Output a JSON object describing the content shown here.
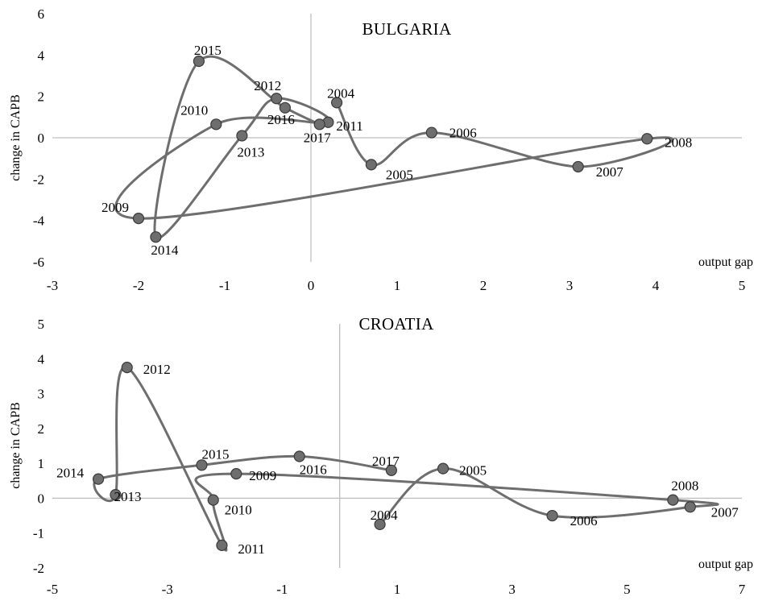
{
  "colors": {
    "line": "#6e6e6e",
    "marker_fill": "#6e6e6e",
    "marker_stroke": "#3a3a3a",
    "axis": "#bfbfbf",
    "text": "#000000"
  },
  "chart_data": [
    {
      "type": "scatter",
      "title": "BULGARIA",
      "xlabel": "output gap",
      "ylabel": "change in CAPB",
      "xlim": [
        -3,
        5
      ],
      "ylim": [
        -6,
        6
      ],
      "xticks": [
        "-3",
        "-2",
        "-1",
        "0",
        "1",
        "2",
        "3",
        "4",
        "5"
      ],
      "yticks": [
        "6",
        "4",
        "2",
        "0",
        "-2",
        "-4",
        "-6"
      ],
      "grid": false,
      "series": [
        {
          "points": [
            {
              "label": "2004",
              "x": 0.3,
              "y": 1.7
            },
            {
              "label": "2005",
              "x": 0.7,
              "y": -1.3
            },
            {
              "label": "2006",
              "x": 1.4,
              "y": 0.25
            },
            {
              "label": "2007",
              "x": 3.1,
              "y": -1.4
            },
            {
              "label": "2008",
              "x": 3.9,
              "y": -0.05
            },
            {
              "label": "2009",
              "x": -2.0,
              "y": -3.9
            },
            {
              "label": "2010",
              "x": -1.1,
              "y": 0.65
            },
            {
              "label": "2011",
              "x": 0.2,
              "y": 0.75
            },
            {
              "label": "2012",
              "x": -0.4,
              "y": 1.9
            },
            {
              "label": "2013",
              "x": -0.8,
              "y": 0.1
            },
            {
              "label": "2014",
              "x": -1.8,
              "y": -4.8
            },
            {
              "label": "2015",
              "x": -1.3,
              "y": 3.7
            },
            {
              "label": "2016",
              "x": -0.3,
              "y": 1.45
            },
            {
              "label": "2017",
              "x": 0.1,
              "y": 0.65
            }
          ]
        }
      ]
    },
    {
      "type": "scatter",
      "title": "CROATIA",
      "xlabel": "output gap",
      "ylabel": "change in CAPB",
      "xlim": [
        -5,
        7
      ],
      "ylim": [
        -2,
        5
      ],
      "xticks": [
        "-5",
        "-3",
        "-1",
        "1",
        "3",
        "5",
        "7"
      ],
      "yticks": [
        "5",
        "4",
        "3",
        "2",
        "1",
        "0",
        "-1",
        "-2"
      ],
      "grid": false,
      "series": [
        {
          "points": [
            {
              "label": "2004",
              "x": 0.7,
              "y": -0.75
            },
            {
              "label": "2005",
              "x": 1.8,
              "y": 0.85
            },
            {
              "label": "2006",
              "x": 3.7,
              "y": -0.5
            },
            {
              "label": "2007",
              "x": 6.1,
              "y": -0.25
            },
            {
              "label": "2008",
              "x": 5.8,
              "y": -0.05
            },
            {
              "label": "2009",
              "x": -1.8,
              "y": 0.7
            },
            {
              "label": "2010",
              "x": -2.2,
              "y": -0.05
            },
            {
              "label": "2011",
              "x": -2.05,
              "y": -1.35
            },
            {
              "label": "2012",
              "x": -3.7,
              "y": 3.75
            },
            {
              "label": "2013",
              "x": -3.9,
              "y": 0.1
            },
            {
              "label": "2014",
              "x": -4.2,
              "y": 0.55
            },
            {
              "label": "2015",
              "x": -2.4,
              "y": 0.95
            },
            {
              "label": "2016",
              "x": -0.7,
              "y": 1.2
            },
            {
              "label": "2017",
              "x": 0.9,
              "y": 0.8
            }
          ]
        }
      ]
    }
  ]
}
